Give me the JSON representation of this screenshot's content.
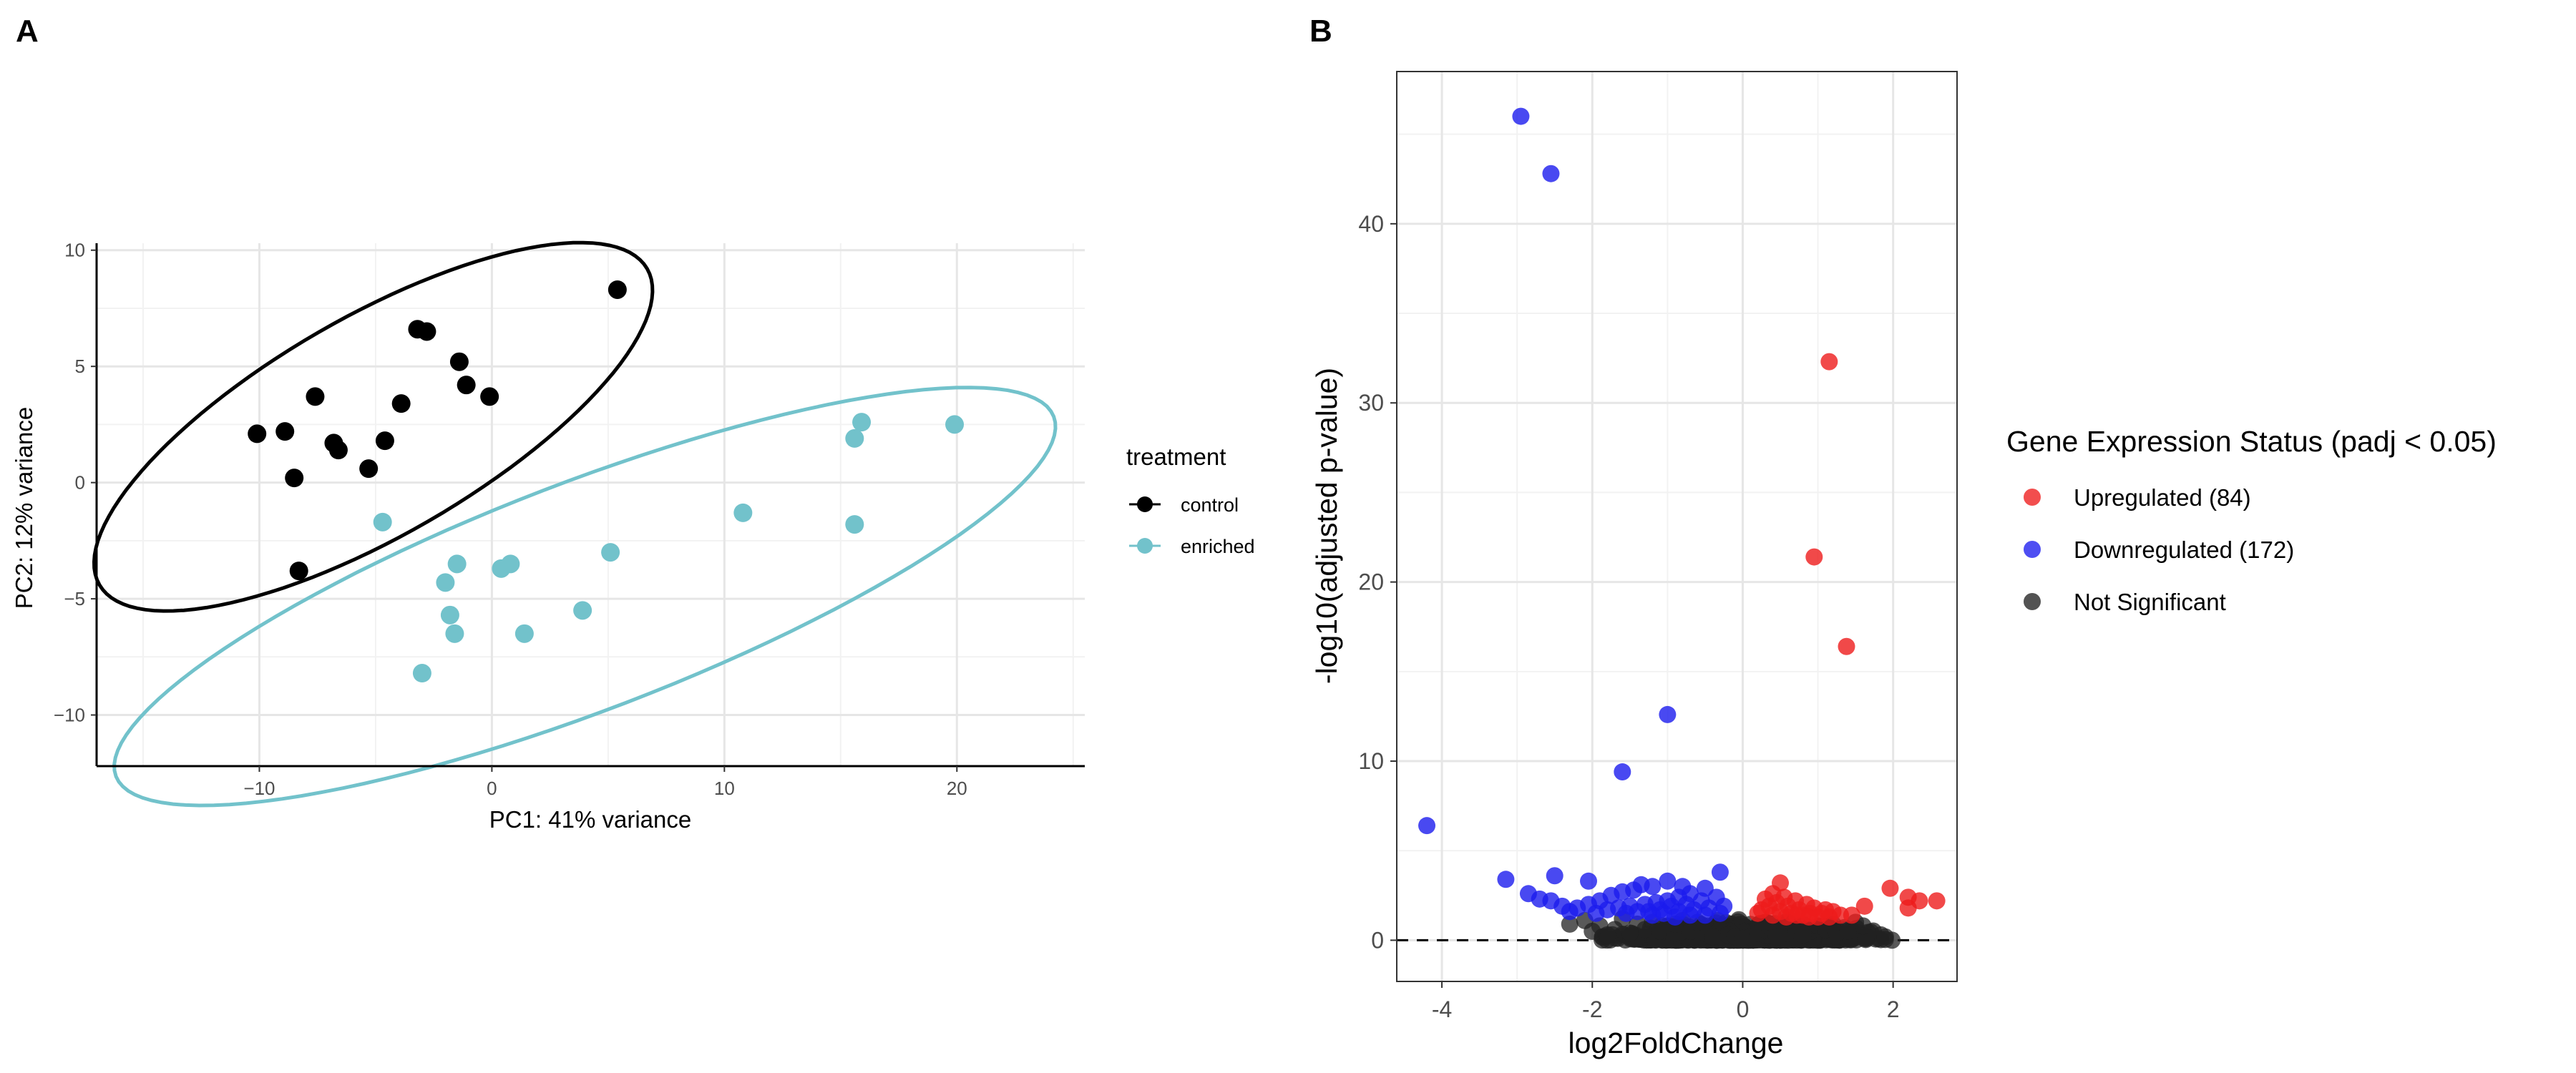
{
  "panels": {
    "a": "A",
    "b": "B"
  },
  "colors": {
    "control": "#000000",
    "enriched": "#72c2cb",
    "up": "#ee1c1c",
    "down": "#1c1cee",
    "ns": "#222222"
  },
  "chart_data": [
    {
      "type": "scatter",
      "title": "",
      "xlabel": "PC1: 41% variance",
      "ylabel": "PC2: 12% variance",
      "xlim": [
        -17,
        25.5
      ],
      "ylim": [
        -12.2,
        10.3
      ],
      "xticks": [
        -10,
        0,
        10,
        20
      ],
      "yticks": [
        -10,
        -5,
        0,
        5,
        10
      ],
      "xtick_labels": [
        "−10",
        "0",
        "10",
        "20"
      ],
      "ytick_labels": [
        "−10",
        "−5",
        "0",
        "5",
        "10"
      ],
      "grid": true,
      "legend_title": "treatment",
      "legend_position": "right",
      "series": [
        {
          "name": "control",
          "color": "#000000",
          "points": [
            [
              5.4,
              8.3
            ],
            [
              -3.2,
              6.6
            ],
            [
              -2.8,
              6.5
            ],
            [
              -1.4,
              5.2
            ],
            [
              -1.1,
              4.2
            ],
            [
              -0.1,
              3.7
            ],
            [
              -3.9,
              3.4
            ],
            [
              -7.6,
              3.7
            ],
            [
              -10.1,
              2.1
            ],
            [
              -8.9,
              2.2
            ],
            [
              -6.8,
              1.7
            ],
            [
              -6.6,
              1.4
            ],
            [
              -4.6,
              1.8
            ],
            [
              -5.3,
              0.6
            ],
            [
              -8.5,
              0.2
            ],
            [
              -8.3,
              -3.8
            ]
          ],
          "ellipse": {
            "cx": -5.1,
            "cy": 2.4,
            "rx": 13.6,
            "ry": 4.7,
            "angle_deg": 30
          }
        },
        {
          "name": "enriched",
          "color": "#72c2cb",
          "points": [
            [
              19.9,
              2.5
            ],
            [
              15.9,
              2.6
            ],
            [
              15.6,
              1.9
            ],
            [
              15.6,
              -1.8
            ],
            [
              10.8,
              -1.3
            ],
            [
              5.1,
              -3.0
            ],
            [
              -4.7,
              -1.7
            ],
            [
              0.8,
              -3.5
            ],
            [
              0.4,
              -3.7
            ],
            [
              -1.5,
              -3.5
            ],
            [
              -2.0,
              -4.3
            ],
            [
              -1.8,
              -5.7
            ],
            [
              -1.6,
              -6.5
            ],
            [
              1.4,
              -6.5
            ],
            [
              3.9,
              -5.5
            ],
            [
              -3.0,
              -8.2
            ]
          ],
          "ellipse": {
            "cx": 4.0,
            "cy": -4.9,
            "rx": 21.6,
            "ry": 4.9,
            "angle_deg": 21
          }
        }
      ]
    },
    {
      "type": "scatter",
      "title": "",
      "xlabel": "log2FoldChange",
      "ylabel": "-log10(adjusted p-value)",
      "xlim": [
        -4.6,
        2.85
      ],
      "ylim": [
        -2.3,
        48.5
      ],
      "xticks": [
        -4,
        -2,
        0,
        2
      ],
      "yticks": [
        0,
        10,
        20,
        30,
        40
      ],
      "xtick_labels": [
        "-4",
        "-2",
        "0",
        "2"
      ],
      "ytick_labels": [
        "0",
        "10",
        "20",
        "30",
        "40"
      ],
      "hline": 0,
      "grid": true,
      "legend_title": "Gene Expression Status (padj < 0.05)",
      "legend_position": "right",
      "series": [
        {
          "name": "Upregulated (84)",
          "color": "#ee1c1c",
          "points": [
            [
              1.15,
              32.3
            ],
            [
              0.95,
              21.4
            ],
            [
              1.38,
              16.4
            ],
            [
              0.5,
              3.2
            ],
            [
              1.96,
              2.9
            ],
            [
              2.2,
              2.4
            ],
            [
              2.35,
              2.2
            ],
            [
              2.58,
              2.2
            ],
            [
              2.2,
              1.8
            ],
            [
              1.62,
              1.9
            ],
            [
              0.3,
              2.3
            ],
            [
              0.4,
              2.6
            ],
            [
              0.55,
              2.4
            ],
            [
              0.7,
              2.2
            ],
            [
              0.85,
              2.0
            ],
            [
              0.95,
              1.8
            ],
            [
              1.1,
              1.7
            ],
            [
              1.2,
              1.6
            ],
            [
              0.35,
              1.9
            ],
            [
              0.45,
              2.1
            ],
            [
              0.6,
              1.9
            ],
            [
              0.75,
              1.7
            ],
            [
              0.9,
              1.5
            ],
            [
              1.05,
              1.5
            ],
            [
              0.25,
              1.7
            ],
            [
              0.5,
              1.6
            ],
            [
              0.65,
              1.5
            ],
            [
              0.8,
              1.4
            ],
            [
              1.3,
              1.4
            ],
            [
              1.45,
              1.4
            ],
            [
              0.2,
              1.5
            ],
            [
              0.4,
              1.4
            ],
            [
              0.58,
              1.3
            ],
            [
              0.72,
              1.4
            ],
            [
              0.88,
              1.3
            ],
            [
              1.0,
              1.3
            ],
            [
              1.15,
              1.3
            ]
          ]
        },
        {
          "name": "Downregulated (172)",
          "color": "#1c1cee",
          "points": [
            [
              -2.95,
              46.0
            ],
            [
              -2.55,
              42.8
            ],
            [
              -1.0,
              12.6
            ],
            [
              -1.6,
              9.4
            ],
            [
              -4.2,
              6.4
            ],
            [
              -3.15,
              3.4
            ],
            [
              -2.5,
              3.6
            ],
            [
              -2.05,
              3.3
            ],
            [
              -2.85,
              2.6
            ],
            [
              -2.7,
              2.3
            ],
            [
              -2.55,
              2.2
            ],
            [
              -2.4,
              1.9
            ],
            [
              -0.3,
              3.8
            ],
            [
              -1.0,
              3.3
            ],
            [
              -1.2,
              3.0
            ],
            [
              -1.45,
              2.8
            ],
            [
              -1.6,
              2.7
            ],
            [
              -1.75,
              2.5
            ],
            [
              -1.9,
              2.2
            ],
            [
              -2.05,
              2.0
            ],
            [
              -2.2,
              1.8
            ],
            [
              -0.5,
              2.9
            ],
            [
              -0.7,
              2.6
            ],
            [
              -0.85,
              2.4
            ],
            [
              -1.0,
              2.2
            ],
            [
              -1.15,
              2.1
            ],
            [
              -1.3,
              2.0
            ],
            [
              -1.5,
              1.9
            ],
            [
              -1.65,
              1.8
            ],
            [
              -1.8,
              1.7
            ],
            [
              -0.35,
              2.4
            ],
            [
              -0.55,
              2.2
            ],
            [
              -0.75,
              2.0
            ],
            [
              -0.95,
              1.9
            ],
            [
              -1.1,
              1.7
            ],
            [
              -1.25,
              1.6
            ],
            [
              -1.4,
              1.6
            ],
            [
              -1.55,
              1.5
            ],
            [
              -1.95,
              1.5
            ],
            [
              -0.25,
              1.9
            ],
            [
              -0.45,
              1.8
            ],
            [
              -0.65,
              1.7
            ],
            [
              -0.85,
              1.6
            ],
            [
              -1.05,
              1.5
            ],
            [
              -1.2,
              1.4
            ],
            [
              -0.3,
              1.5
            ],
            [
              -0.5,
              1.4
            ],
            [
              -0.7,
              1.4
            ],
            [
              -0.9,
              1.3
            ],
            [
              -1.35,
              3.1
            ],
            [
              -0.8,
              3.0
            ],
            [
              -2.3,
              1.6
            ]
          ]
        },
        {
          "name": "Not Significant",
          "color": "#222222",
          "points": [
            [
              -2.1,
              1.1
            ],
            [
              -2.3,
              0.9
            ],
            [
              -1.9,
              0.8
            ],
            [
              -1.6,
              1.2
            ],
            [
              -1.4,
              0.9
            ],
            [
              -1.7,
              0.6
            ],
            [
              -1.2,
              1.0
            ],
            [
              -1.0,
              0.8
            ],
            [
              -0.8,
              1.1
            ],
            [
              -0.6,
              0.7
            ],
            [
              -1.3,
              0.6
            ],
            [
              -1.1,
              0.5
            ],
            [
              -0.9,
              0.4
            ],
            [
              -0.7,
              0.5
            ],
            [
              -0.5,
              0.4
            ],
            [
              -0.3,
              0.6
            ],
            [
              -0.2,
              0.3
            ],
            [
              -0.1,
              0.2
            ],
            [
              0.0,
              0.1
            ],
            [
              0.1,
              0.2
            ],
            [
              0.2,
              0.4
            ],
            [
              0.3,
              0.6
            ],
            [
              0.4,
              0.5
            ],
            [
              0.5,
              0.7
            ],
            [
              0.6,
              0.4
            ],
            [
              0.7,
              0.6
            ],
            [
              0.8,
              0.9
            ],
            [
              0.9,
              0.5
            ],
            [
              1.0,
              0.8
            ],
            [
              1.1,
              0.6
            ],
            [
              1.2,
              0.9
            ],
            [
              1.35,
              0.7
            ],
            [
              1.5,
              1.0
            ],
            [
              1.6,
              0.8
            ],
            [
              1.25,
              0.4
            ],
            [
              1.4,
              0.5
            ],
            [
              -1.5,
              0.4
            ],
            [
              -1.8,
              0.3
            ],
            [
              -2.0,
              0.5
            ],
            [
              -0.4,
              0.2
            ],
            [
              0.45,
              0.2
            ],
            [
              0.8,
              0.3
            ],
            [
              -0.9,
              0.9
            ],
            [
              -0.6,
              1.0
            ],
            [
              0.3,
              1.0
            ],
            [
              0.6,
              1.1
            ]
          ]
        }
      ]
    }
  ]
}
